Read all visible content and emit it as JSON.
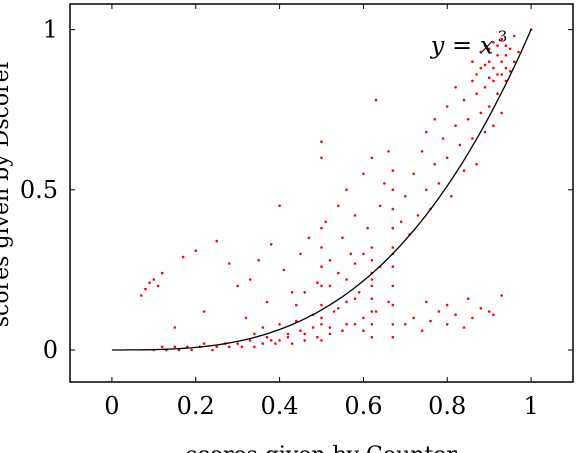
{
  "chart_data": {
    "type": "scatter",
    "title": "",
    "xlabel": "scores given by Counter",
    "ylabel": "scores given by Dscorer",
    "xlim": [
      -0.1,
      1.1
    ],
    "ylim": [
      -0.1,
      1.08
    ],
    "xticks": [
      0,
      0.2,
      0.4,
      0.6,
      0.8,
      1
    ],
    "xtick_labels": [
      "0",
      "0.2",
      "0.4",
      "0.6",
      "0.8",
      "1"
    ],
    "yticks": [
      0,
      0.5,
      1
    ],
    "ytick_labels": [
      "0",
      "0.5",
      "1"
    ],
    "grid": false,
    "legend": "none",
    "series": [
      {
        "type": "scatter",
        "color": "#ff0000",
        "points": [
          [
            0.1,
            0.0
          ],
          [
            0.12,
            0.01
          ],
          [
            0.13,
            0.0
          ],
          [
            0.15,
            0.01
          ],
          [
            0.16,
            0.0
          ],
          [
            0.18,
            0.01
          ],
          [
            0.19,
            0.0
          ],
          [
            0.21,
            0.01
          ],
          [
            0.22,
            0.02
          ],
          [
            0.24,
            0.0
          ],
          [
            0.25,
            0.01
          ],
          [
            0.27,
            0.02
          ],
          [
            0.28,
            0.01
          ],
          [
            0.3,
            0.02
          ],
          [
            0.31,
            0.01
          ],
          [
            0.33,
            0.03
          ],
          [
            0.34,
            0.01
          ],
          [
            0.36,
            0.02
          ],
          [
            0.37,
            0.04
          ],
          [
            0.39,
            0.02
          ],
          [
            0.4,
            0.03
          ],
          [
            0.42,
            0.05
          ],
          [
            0.43,
            0.02
          ],
          [
            0.45,
            0.06
          ],
          [
            0.46,
            0.03
          ],
          [
            0.48,
            0.07
          ],
          [
            0.49,
            0.04
          ],
          [
            0.5,
            0.1
          ],
          [
            0.52,
            0.05
          ],
          [
            0.53,
            0.12
          ],
          [
            0.55,
            0.06
          ],
          [
            0.56,
            0.15
          ],
          [
            0.58,
            0.08
          ],
          [
            0.59,
            0.18
          ],
          [
            0.6,
            0.1
          ],
          [
            0.62,
            0.22
          ],
          [
            0.63,
            0.12
          ],
          [
            0.64,
            0.26
          ],
          [
            0.66,
            0.15
          ],
          [
            0.67,
            0.3
          ],
          [
            0.07,
            0.17
          ],
          [
            0.08,
            0.19
          ],
          [
            0.09,
            0.21
          ],
          [
            0.1,
            0.22
          ],
          [
            0.11,
            0.2
          ],
          [
            0.12,
            0.24
          ],
          [
            0.15,
            0.07
          ],
          [
            0.17,
            0.29
          ],
          [
            0.2,
            0.31
          ],
          [
            0.22,
            0.12
          ],
          [
            0.25,
            0.34
          ],
          [
            0.28,
            0.27
          ],
          [
            0.3,
            0.2
          ],
          [
            0.32,
            0.1
          ],
          [
            0.33,
            0.22
          ],
          [
            0.35,
            0.28
          ],
          [
            0.37,
            0.15
          ],
          [
            0.38,
            0.33
          ],
          [
            0.4,
            0.45
          ],
          [
            0.41,
            0.25
          ],
          [
            0.43,
            0.18
          ],
          [
            0.45,
            0.3
          ],
          [
            0.47,
            0.35
          ],
          [
            0.49,
            0.21
          ],
          [
            0.5,
            0.6
          ],
          [
            0.5,
            0.65
          ],
          [
            0.51,
            0.4
          ],
          [
            0.52,
            0.28
          ],
          [
            0.54,
            0.45
          ],
          [
            0.55,
            0.35
          ],
          [
            0.56,
            0.5
          ],
          [
            0.57,
            0.3
          ],
          [
            0.58,
            0.42
          ],
          [
            0.6,
            0.55
          ],
          [
            0.61,
            0.38
          ],
          [
            0.62,
            0.6
          ],
          [
            0.63,
            0.78
          ],
          [
            0.64,
            0.45
          ],
          [
            0.65,
            0.52
          ],
          [
            0.66,
            0.62
          ],
          [
            0.62,
            0.32
          ],
          [
            0.62,
            0.28
          ],
          [
            0.62,
            0.24
          ],
          [
            0.62,
            0.2
          ],
          [
            0.62,
            0.16
          ],
          [
            0.62,
            0.12
          ],
          [
            0.62,
            0.08
          ],
          [
            0.62,
            0.04
          ],
          [
            0.67,
            0.56
          ],
          [
            0.67,
            0.5
          ],
          [
            0.67,
            0.44
          ],
          [
            0.67,
            0.38
          ],
          [
            0.67,
            0.32
          ],
          [
            0.67,
            0.26
          ],
          [
            0.67,
            0.2
          ],
          [
            0.67,
            0.14
          ],
          [
            0.67,
            0.08
          ],
          [
            0.67,
            0.04
          ],
          [
            0.5,
            0.38
          ],
          [
            0.5,
            0.32
          ],
          [
            0.5,
            0.26
          ],
          [
            0.5,
            0.2
          ],
          [
            0.5,
            0.14
          ],
          [
            0.5,
            0.08
          ],
          [
            0.5,
            0.03
          ],
          [
            0.69,
            0.4
          ],
          [
            0.7,
            0.48
          ],
          [
            0.71,
            0.36
          ],
          [
            0.72,
            0.55
          ],
          [
            0.73,
            0.42
          ],
          [
            0.74,
            0.62
          ],
          [
            0.75,
            0.5
          ],
          [
            0.75,
            0.68
          ],
          [
            0.76,
            0.44
          ],
          [
            0.77,
            0.58
          ],
          [
            0.77,
            0.72
          ],
          [
            0.78,
            0.52
          ],
          [
            0.79,
            0.66
          ],
          [
            0.8,
            0.76
          ],
          [
            0.8,
            0.6
          ],
          [
            0.81,
            0.48
          ],
          [
            0.82,
            0.7
          ],
          [
            0.82,
            0.82
          ],
          [
            0.83,
            0.64
          ],
          [
            0.84,
            0.78
          ],
          [
            0.84,
            0.56
          ],
          [
            0.85,
            0.72
          ],
          [
            0.86,
            0.84
          ],
          [
            0.86,
            0.66
          ],
          [
            0.87,
            0.58
          ],
          [
            0.87,
            0.8
          ],
          [
            0.88,
            0.74
          ],
          [
            0.88,
            0.88
          ],
          [
            0.89,
            0.68
          ],
          [
            0.89,
            0.82
          ],
          [
            0.9,
            0.76
          ],
          [
            0.9,
            0.9
          ],
          [
            0.91,
            0.84
          ],
          [
            0.91,
            0.7
          ],
          [
            0.92,
            0.92
          ],
          [
            0.92,
            0.8
          ],
          [
            0.93,
            0.86
          ],
          [
            0.93,
            0.74
          ],
          [
            0.94,
            0.95
          ],
          [
            0.94,
            0.88
          ],
          [
            0.86,
            0.9
          ],
          [
            0.87,
            0.86
          ],
          [
            0.88,
            0.93
          ],
          [
            0.89,
            0.89
          ],
          [
            0.89,
            0.95
          ],
          [
            0.9,
            0.85
          ],
          [
            0.9,
            0.94
          ],
          [
            0.91,
            0.88
          ],
          [
            0.91,
            0.96
          ],
          [
            0.92,
            0.86
          ],
          [
            0.92,
            0.95
          ],
          [
            0.93,
            0.9
          ],
          [
            0.93,
            0.97
          ],
          [
            0.94,
            0.84
          ],
          [
            0.94,
            0.92
          ],
          [
            0.95,
            0.87
          ],
          [
            0.95,
            0.94
          ],
          [
            0.96,
            0.9
          ],
          [
            0.96,
            0.98
          ],
          [
            0.97,
            0.93
          ],
          [
            0.7,
            0.08
          ],
          [
            0.72,
            0.1
          ],
          [
            0.74,
            0.06
          ],
          [
            0.76,
            0.09
          ],
          [
            0.78,
            0.12
          ],
          [
            0.8,
            0.08
          ],
          [
            0.82,
            0.11
          ],
          [
            0.84,
            0.07
          ],
          [
            0.86,
            0.1
          ],
          [
            0.88,
            0.13
          ],
          [
            0.9,
            0.12
          ],
          [
            0.91,
            0.11
          ],
          [
            0.93,
            0.17
          ],
          [
            0.75,
            0.15
          ],
          [
            0.8,
            0.14
          ],
          [
            0.85,
            0.16
          ],
          [
            0.34,
            0.05
          ],
          [
            0.36,
            0.07
          ],
          [
            0.38,
            0.03
          ],
          [
            0.4,
            0.08
          ],
          [
            0.42,
            0.04
          ],
          [
            0.44,
            0.09
          ],
          [
            0.46,
            0.05
          ],
          [
            0.48,
            0.11
          ],
          [
            0.52,
            0.07
          ],
          [
            0.54,
            0.13
          ],
          [
            0.56,
            0.08
          ],
          [
            0.58,
            0.16
          ],
          [
            0.6,
            0.06
          ],
          [
            0.44,
            0.14
          ],
          [
            0.46,
            0.18
          ],
          [
            0.52,
            0.2
          ],
          [
            0.54,
            0.24
          ],
          [
            0.56,
            0.22
          ],
          [
            0.58,
            0.27
          ],
          [
            0.6,
            0.3
          ],
          [
            1.0,
            1.0
          ]
        ]
      },
      {
        "type": "line",
        "name": "y = x^3",
        "function": "x^3",
        "domain": [
          0,
          1
        ],
        "color": "#000000"
      }
    ],
    "annotations": [
      {
        "text": "y = x",
        "superscript": "3",
        "x": 0.88,
        "y": 0.95
      }
    ]
  }
}
